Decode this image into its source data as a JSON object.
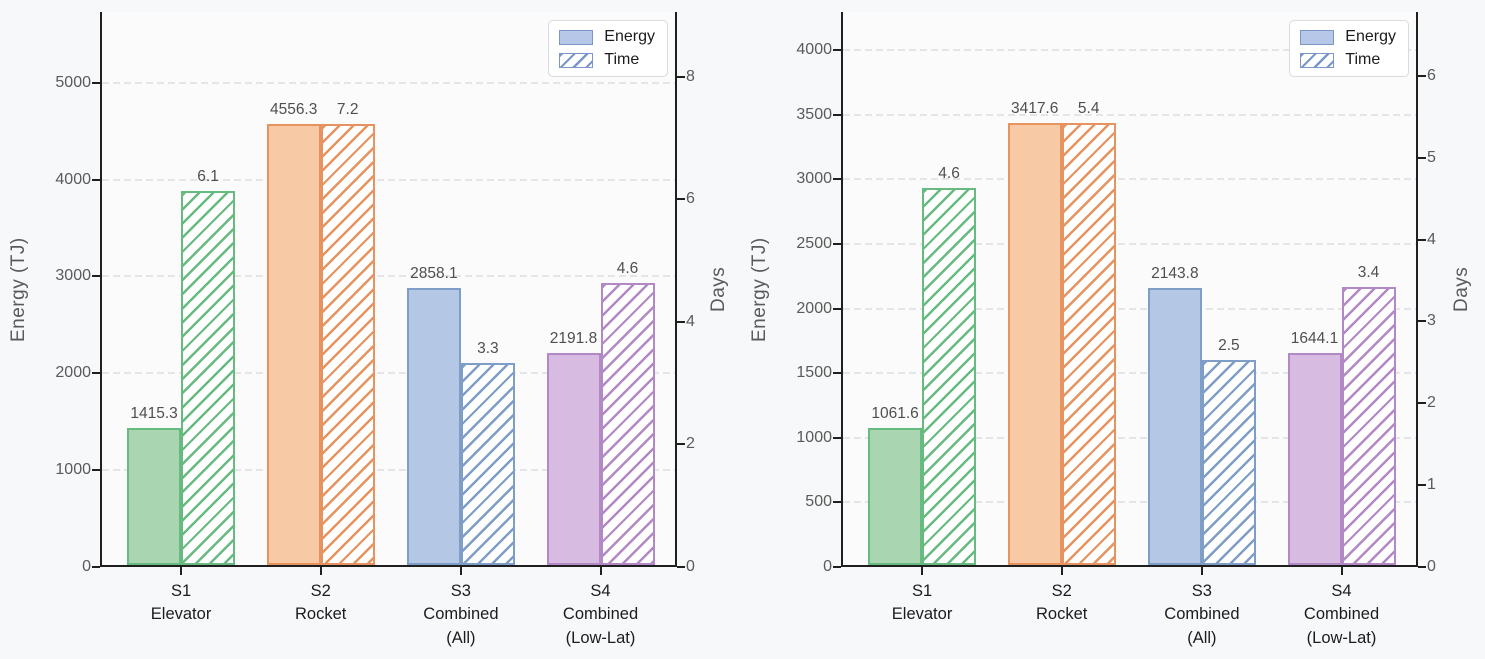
{
  "figure": {
    "bg": "#f7f8f9",
    "plot_bg": "#fbfbfc",
    "grid_color": "#e3e5e8",
    "spine_color": "#1f1f1f",
    "tick_label_color": "#5a5a5a",
    "value_label_color": "#4f4f4f",
    "category_label_color": "#1c1c1c"
  },
  "legend": {
    "position": "upper-right",
    "patch_fill": "#b6c7e8",
    "patch_edge": "#7b97c9",
    "items": [
      {
        "label": "Energy",
        "hatched": false
      },
      {
        "label": "Time",
        "hatched": true
      }
    ]
  },
  "palette": [
    {
      "name": "green",
      "fill": "#a9d6b1",
      "edge": "#68bb80"
    },
    {
      "name": "orange",
      "fill": "#f7c9a5",
      "edge": "#e6935f"
    },
    {
      "name": "blue",
      "fill": "#b4c7e5",
      "edge": "#7e9ec8"
    },
    {
      "name": "purple",
      "fill": "#d7bbe1",
      "edge": "#b288c5"
    }
  ],
  "chart_data": [
    {
      "type": "bar",
      "title": "",
      "categories": [
        [
          "S1",
          "Elevator"
        ],
        [
          "S2",
          "Rocket"
        ],
        [
          "S3",
          "Combined",
          "(All)"
        ],
        [
          "S4",
          "Combined",
          "(Low-Lat)"
        ]
      ],
      "series": [
        {
          "name": "Energy",
          "axis": "left",
          "style": "solid",
          "values": [
            1415.3,
            4556.3,
            2858.1,
            2191.8
          ]
        },
        {
          "name": "Time",
          "axis": "right",
          "style": "hatched",
          "values": [
            6.1,
            7.2,
            3.3,
            4.6
          ]
        }
      ],
      "ylabel_left": "Energy (TJ)",
      "ylabel_right": "Days",
      "left_ticks": [
        0,
        1000,
        2000,
        3000,
        4000,
        5000
      ],
      "left_max": 5730,
      "right_ticks": [
        0,
        2,
        4,
        6,
        8
      ],
      "right_max": 9.06,
      "grid": "dashed-horizontal",
      "legend_position": "upper-right"
    },
    {
      "type": "bar",
      "title": "",
      "categories": [
        [
          "S1",
          "Elevator"
        ],
        [
          "S2",
          "Rocket"
        ],
        [
          "S3",
          "Combined",
          "(All)"
        ],
        [
          "S4",
          "Combined",
          "(Low-Lat)"
        ]
      ],
      "series": [
        {
          "name": "Energy",
          "axis": "left",
          "style": "solid",
          "values": [
            1061.6,
            3417.6,
            2143.8,
            1644.1
          ]
        },
        {
          "name": "Time",
          "axis": "right",
          "style": "hatched",
          "values": [
            4.6,
            5.4,
            2.5,
            3.4
          ]
        }
      ],
      "ylabel_left": "Energy (TJ)",
      "ylabel_right": "Days",
      "left_ticks": [
        0,
        500,
        1000,
        1500,
        2000,
        2500,
        3000,
        3500,
        4000
      ],
      "left_max": 4295,
      "right_ticks": [
        0,
        1,
        2,
        3,
        4,
        5,
        6
      ],
      "right_max": 6.78,
      "grid": "dashed-horizontal",
      "legend_position": "upper-right"
    }
  ]
}
